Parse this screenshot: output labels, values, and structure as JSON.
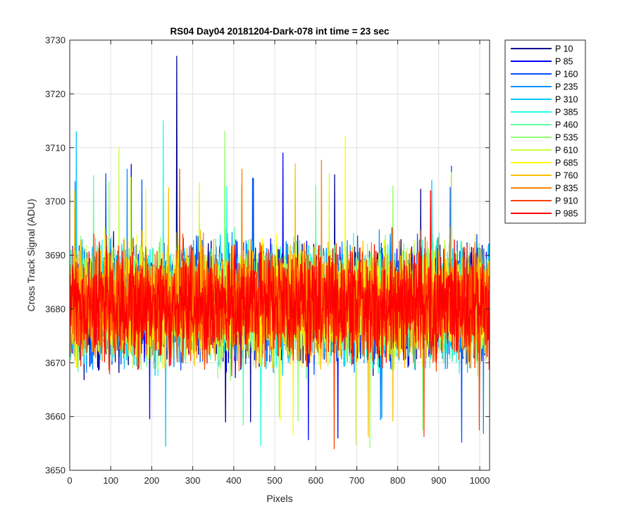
{
  "chart_data": {
    "type": "line",
    "title": "RS04 Day04 20181204-Dark-078 int time = 23 sec",
    "xlabel": "Pixels",
    "ylabel": "Cross Track Signal (ADU)",
    "xlim": [
      0,
      1024
    ],
    "ylim": [
      3650,
      3730
    ],
    "x_ticks": [
      0,
      100,
      200,
      300,
      400,
      500,
      600,
      700,
      800,
      900,
      1000
    ],
    "y_ticks": [
      3650,
      3660,
      3670,
      3680,
      3690,
      3700,
      3710,
      3720,
      3730
    ],
    "x_tick_labels": [
      "0",
      "100",
      "200",
      "300",
      "400",
      "500",
      "600",
      "700",
      "800",
      "900",
      "1000"
    ],
    "y_tick_labels": [
      "3650",
      "3660",
      "3670",
      "3680",
      "3690",
      "3700",
      "3710",
      "3720",
      "3730"
    ],
    "grid": true,
    "legend_position": "outside-top-right",
    "series_level": 3681,
    "noise_half_range": 13,
    "series": [
      {
        "name": "P 10",
        "color": "#00008f",
        "spike": {
          "x": 261,
          "y": 3727
        }
      },
      {
        "name": "P 85",
        "color": "#0000ff",
        "spike": {
          "x": 520,
          "y": 3709
        }
      },
      {
        "name": "P 160",
        "color": "#0050ff",
        "spike": {
          "x": 176,
          "y": 3704
        }
      },
      {
        "name": "P 235",
        "color": "#0090ff",
        "spike": {
          "x": 140,
          "y": 3706
        }
      },
      {
        "name": "P 310",
        "color": "#00c8ff",
        "spike": {
          "x": 16,
          "y": 3713
        }
      },
      {
        "name": "P 385",
        "color": "#20ffe0",
        "spike": {
          "x": 228,
          "y": 3715
        }
      },
      {
        "name": "P 460",
        "color": "#60ffa0",
        "spike": {
          "x": 600,
          "y": 3703
        }
      },
      {
        "name": "P 535",
        "color": "#90ff70",
        "spike": {
          "x": 378,
          "y": 3713
        }
      },
      {
        "name": "P 610",
        "color": "#c8ff38",
        "spike": {
          "x": 120,
          "y": 3710
        }
      },
      {
        "name": "P 685",
        "color": "#ffff00",
        "spike": {
          "x": 672,
          "y": 3712
        }
      },
      {
        "name": "P 760",
        "color": "#ffc000",
        "spike": {
          "x": 550,
          "y": 3707
        }
      },
      {
        "name": "P 835",
        "color": "#ff8000",
        "spike": {
          "x": 420,
          "y": 3706
        }
      },
      {
        "name": "P 910",
        "color": "#ff4000",
        "spike": {
          "x": 268,
          "y": 3706
        }
      },
      {
        "name": "P 985",
        "color": "#ff0000",
        "spike": {
          "x": 880,
          "y": 3702
        }
      }
    ]
  }
}
